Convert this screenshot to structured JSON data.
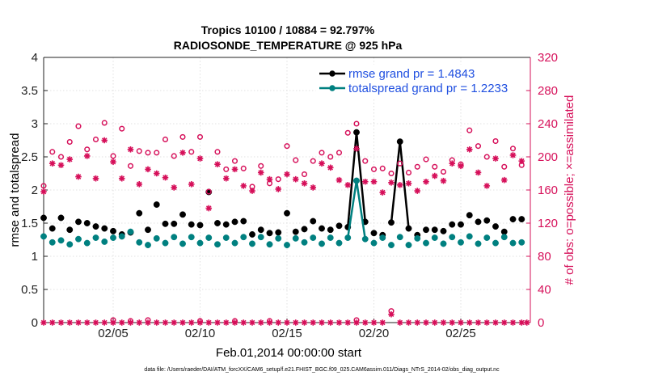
{
  "chart_data": {
    "type": "line",
    "title": "Tropics 10100 / 10884 = 92.797%",
    "subtitle": "RADIOSONDE_TEMPERATURE @ 925 hPa",
    "xlabel": "Feb.01,2014 00:00:00 start",
    "ylabel": "rmse and totalspread",
    "ylabel_right": "# of obs: o=possible; ×=assimilated",
    "footer": "data file: /Users/raeder/DAI/ATM_forcXX/CAM6_setup/f.e21.FHIST_BGC.f09_025.CAM6assim.011/Diags_NTrS_2014-02/obs_diag_output.nc",
    "xlim": [
      1,
      29
    ],
    "ylim": [
      0,
      4
    ],
    "ylim_right": [
      0,
      320
    ],
    "yticks": [
      "0",
      "0.5",
      "1",
      "1.5",
      "2",
      "2.5",
      "3",
      "3.5",
      "4"
    ],
    "yticks_right": [
      "0",
      "40",
      "80",
      "120",
      "160",
      "200",
      "240",
      "280",
      "320"
    ],
    "xticks": [
      {
        "x": 5,
        "label": "02/05"
      },
      {
        "x": 10,
        "label": "02/10"
      },
      {
        "x": 15,
        "label": "02/15"
      },
      {
        "x": 20,
        "label": "02/20"
      },
      {
        "x": 25,
        "label": "02/25"
      }
    ],
    "colors": {
      "rmse": "#000000",
      "spread": "#008080",
      "counts": "#d6105a",
      "legend_text": "#1f4fe0"
    },
    "legend": [
      {
        "name": "rmse grand pr = 1.4843",
        "series": "rmse"
      },
      {
        "name": "totalspread grand pr = 1.2233",
        "series": "spread"
      }
    ],
    "series": [
      {
        "name": "rmse",
        "axis": "left",
        "x": [
          1.0,
          1.5,
          2.0,
          2.5,
          3.0,
          3.5,
          4.0,
          4.5,
          5.0,
          5.5,
          6.0,
          6.5,
          7.0,
          7.5,
          8.0,
          8.5,
          9.0,
          9.5,
          10.0,
          10.5,
          11.0,
          11.5,
          12.0,
          12.5,
          13.0,
          13.5,
          14.0,
          14.5,
          15.0,
          15.5,
          16.0,
          16.5,
          17.0,
          17.5,
          18.0,
          18.5,
          19.0,
          19.5,
          20.0,
          20.5,
          21.0,
          21.5,
          22.0,
          22.5,
          23.0,
          23.5,
          24.0,
          24.5,
          25.0,
          25.5,
          26.0,
          26.5,
          27.0,
          27.5,
          28.0,
          28.5
        ],
        "values": [
          1.58,
          1.42,
          1.58,
          1.4,
          1.52,
          1.5,
          1.45,
          1.42,
          1.38,
          1.33,
          1.36,
          1.65,
          1.4,
          1.78,
          1.49,
          1.49,
          1.63,
          1.48,
          1.47,
          1.97,
          1.5,
          1.48,
          1.52,
          1.53,
          1.33,
          1.4,
          1.35,
          1.36,
          1.65,
          1.37,
          1.41,
          1.53,
          1.42,
          1.4,
          1.46,
          1.44,
          2.87,
          1.52,
          1.35,
          1.32,
          1.51,
          2.73,
          1.42,
          1.32,
          1.4,
          1.4,
          1.38,
          1.48,
          1.48,
          1.62,
          1.52,
          1.54,
          1.45,
          1.37,
          1.56,
          1.56
        ]
      },
      {
        "name": "totalspread",
        "axis": "left",
        "x": [
          1.0,
          1.5,
          2.0,
          2.5,
          3.0,
          3.5,
          4.0,
          4.5,
          5.0,
          5.5,
          6.0,
          6.5,
          7.0,
          7.5,
          8.0,
          8.5,
          9.0,
          9.5,
          10.0,
          10.5,
          11.0,
          11.5,
          12.0,
          12.5,
          13.0,
          13.5,
          14.0,
          14.5,
          15.0,
          15.5,
          16.0,
          16.5,
          17.0,
          17.5,
          18.0,
          18.5,
          19.0,
          19.5,
          20.0,
          20.5,
          21.0,
          21.5,
          22.0,
          22.5,
          23.0,
          23.5,
          24.0,
          24.5,
          25.0,
          25.5,
          26.0,
          26.5,
          27.0,
          27.5,
          28.0,
          28.5
        ],
        "values": [
          1.3,
          1.21,
          1.24,
          1.18,
          1.26,
          1.2,
          1.28,
          1.22,
          1.28,
          1.3,
          1.37,
          1.21,
          1.17,
          1.27,
          1.2,
          1.29,
          1.19,
          1.29,
          1.2,
          1.28,
          1.18,
          1.28,
          1.2,
          1.29,
          1.19,
          1.29,
          1.18,
          1.27,
          1.17,
          1.27,
          1.21,
          1.28,
          1.19,
          1.28,
          1.2,
          1.28,
          2.14,
          1.26,
          1.2,
          1.28,
          1.17,
          1.29,
          1.17,
          1.27,
          1.2,
          1.28,
          1.19,
          1.29,
          1.21,
          1.3,
          1.19,
          1.28,
          1.2,
          1.29,
          1.2,
          1.21
        ]
      },
      {
        "name": "possible",
        "axis": "right",
        "marker": "o",
        "x": [
          1.0,
          1.5,
          2.0,
          2.5,
          3.0,
          3.5,
          4.0,
          4.5,
          5.0,
          5.5,
          6.0,
          6.5,
          7.0,
          7.5,
          8.0,
          8.5,
          9.0,
          9.5,
          10.0,
          10.5,
          11.0,
          11.5,
          12.0,
          12.5,
          13.0,
          13.5,
          14.0,
          14.5,
          15.0,
          15.5,
          16.0,
          16.5,
          17.0,
          17.5,
          18.0,
          18.5,
          19.0,
          19.5,
          20.0,
          20.5,
          21.0,
          21.5,
          22.0,
          22.5,
          23.0,
          23.5,
          24.0,
          24.5,
          25.0,
          25.5,
          26.0,
          26.5,
          27.0,
          27.5,
          28.0,
          28.5
        ],
        "values": [
          165,
          206,
          200,
          218,
          237,
          209,
          221,
          241,
          201,
          234,
          189,
          207,
          205,
          205,
          221,
          201,
          224,
          206,
          224,
          158,
          206,
          185,
          195,
          186,
          164,
          189,
          168,
          173,
          213,
          196,
          179,
          195,
          205,
          200,
          205,
          229,
          240,
          195,
          185,
          186,
          180,
          192,
          181,
          188,
          197,
          188,
          182,
          196,
          191,
          232,
          213,
          200,
          219,
          188,
          210,
          190
        ]
      },
      {
        "name": "assimilated",
        "axis": "right",
        "marker": "x",
        "x": [
          1.0,
          1.5,
          2.0,
          2.5,
          3.0,
          3.5,
          4.0,
          4.5,
          5.0,
          5.5,
          6.0,
          6.5,
          7.0,
          7.5,
          8.0,
          8.5,
          9.0,
          9.5,
          10.0,
          10.5,
          11.0,
          11.5,
          12.0,
          12.5,
          13.0,
          13.5,
          14.0,
          14.5,
          15.0,
          15.5,
          16.0,
          16.5,
          17.0,
          17.5,
          18.0,
          18.5,
          19.0,
          19.5,
          20.0,
          20.5,
          21.0,
          21.5,
          22.0,
          22.5,
          23.0,
          23.5,
          24.0,
          24.5,
          25.0,
          25.5,
          26.0,
          26.5,
          27.0,
          27.5,
          28.0,
          28.5
        ],
        "values": [
          158,
          192,
          190,
          197,
          176,
          201,
          174,
          220,
          194,
          174,
          209,
          167,
          185,
          180,
          175,
          163,
          205,
          167,
          198,
          138,
          191,
          174,
          185,
          165,
          159,
          181,
          173,
          161,
          179,
          173,
          168,
          163,
          192,
          187,
          172,
          166,
          210,
          170,
          170,
          157,
          169,
          166,
          168,
          159,
          170,
          177,
          171,
          192,
          189,
          209,
          181,
          165,
          198,
          172,
          202,
          195
        ]
      },
      {
        "name": "possible_low",
        "axis": "right",
        "marker": "o",
        "x": [
          5.0,
          6.0,
          7.0,
          10.0,
          12.0,
          14.0,
          19.0,
          21.0
        ],
        "values": [
          3,
          2,
          3,
          2,
          2,
          2,
          3,
          14
        ]
      },
      {
        "name": "assimilated_low",
        "axis": "right",
        "marker": "x",
        "x": [
          1.0,
          1.5,
          2.0,
          2.5,
          3.0,
          3.5,
          4.0,
          4.5,
          5.0,
          5.5,
          6.0,
          6.5,
          7.0,
          7.5,
          8.0,
          8.5,
          9.0,
          9.5,
          10.0,
          10.5,
          11.0,
          11.5,
          12.0,
          12.5,
          13.0,
          13.5,
          14.0,
          14.5,
          15.0,
          15.5,
          16.0,
          16.5,
          17.0,
          17.5,
          18.0,
          18.5,
          19.0,
          19.5,
          20.0,
          20.5,
          21.0,
          21.5,
          22.0,
          22.5,
          23.0,
          23.5,
          24.0,
          24.5,
          25.0,
          25.5,
          26.0,
          26.5,
          27.0,
          27.5,
          28.0,
          28.5,
          28.8
        ],
        "values": [
          0,
          0,
          0,
          0,
          0,
          0,
          0,
          0,
          0,
          0,
          0,
          0,
          0,
          0,
          0,
          0,
          0,
          0,
          0,
          0,
          0,
          0,
          0,
          0,
          0,
          0,
          0,
          0,
          0,
          0,
          0,
          0,
          0,
          0,
          0,
          0,
          0,
          0,
          0,
          0,
          10,
          0,
          0,
          0,
          0,
          0,
          0,
          0,
          0,
          0,
          0,
          0,
          0,
          0,
          0,
          0,
          0
        ]
      }
    ]
  }
}
